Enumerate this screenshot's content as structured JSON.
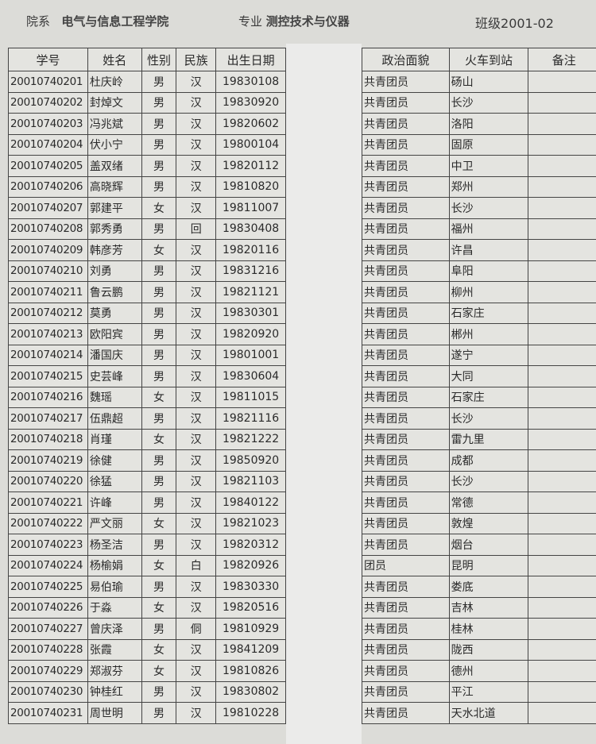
{
  "header": {
    "dept_label": "院系",
    "dept": "电气与信息工程学院",
    "major_label": "专业",
    "major": "测控技术与仪器",
    "class_label": "班级",
    "class": "2001-02"
  },
  "columns_left": [
    "学号",
    "姓名",
    "性别",
    "民族",
    "出生日期"
  ],
  "columns_right": [
    "政治面貌",
    "火车到站",
    "备注"
  ],
  "rows": [
    [
      "20010740201",
      "杜庆岭",
      "男",
      "汉",
      "19830108",
      "共青团员",
      "砀山"
    ],
    [
      "20010740202",
      "封焯文",
      "男",
      "汉",
      "19830920",
      "共青团员",
      "长沙"
    ],
    [
      "20010740203",
      "冯兆斌",
      "男",
      "汉",
      "19820602",
      "共青团员",
      "洛阳"
    ],
    [
      "20010740204",
      "伏小宁",
      "男",
      "汉",
      "19800104",
      "共青团员",
      "固原"
    ],
    [
      "20010740205",
      "盖双绪",
      "男",
      "汉",
      "19820112",
      "共青团员",
      "中卫"
    ],
    [
      "20010740206",
      "高晓辉",
      "男",
      "汉",
      "19810820",
      "共青团员",
      "郑州"
    ],
    [
      "20010740207",
      "郭建平",
      "女",
      "汉",
      "19811007",
      "共青团员",
      "长沙"
    ],
    [
      "20010740208",
      "郭秀勇",
      "男",
      "回",
      "19830408",
      "共青团员",
      "福州"
    ],
    [
      "20010740209",
      "韩彦芳",
      "女",
      "汉",
      "19820116",
      "共青团员",
      "许昌"
    ],
    [
      "20010740210",
      "刘勇",
      "男",
      "汉",
      "19831216",
      "共青团员",
      "阜阳"
    ],
    [
      "20010740211",
      "鲁云鹏",
      "男",
      "汉",
      "19821121",
      "共青团员",
      "柳州"
    ],
    [
      "20010740212",
      "莫勇",
      "男",
      "汉",
      "19830301",
      "共青团员",
      "石家庄"
    ],
    [
      "20010740213",
      "欧阳宾",
      "男",
      "汉",
      "19820920",
      "共青团员",
      "郴州"
    ],
    [
      "20010740214",
      "潘国庆",
      "男",
      "汉",
      "19801001",
      "共青团员",
      "遂宁"
    ],
    [
      "20010740215",
      "史芸峰",
      "男",
      "汉",
      "19830604",
      "共青团员",
      "大同"
    ],
    [
      "20010740216",
      "魏瑶",
      "女",
      "汉",
      "19811015",
      "共青团员",
      "石家庄"
    ],
    [
      "20010740217",
      "伍鼎超",
      "男",
      "汉",
      "19821116",
      "共青团员",
      "长沙"
    ],
    [
      "20010740218",
      "肖瑾",
      "女",
      "汉",
      "19821222",
      "共青团员",
      "雷九里"
    ],
    [
      "20010740219",
      "徐健",
      "男",
      "汉",
      "19850920",
      "共青团员",
      "成都"
    ],
    [
      "20010740220",
      "徐猛",
      "男",
      "汉",
      "19821103",
      "共青团员",
      "长沙"
    ],
    [
      "20010740221",
      "许峰",
      "男",
      "汉",
      "19840122",
      "共青团员",
      "常德"
    ],
    [
      "20010740222",
      "严文丽",
      "女",
      "汉",
      "19821023",
      "共青团员",
      "敦煌"
    ],
    [
      "20010740223",
      "杨圣洁",
      "男",
      "汉",
      "19820312",
      "共青团员",
      "烟台"
    ],
    [
      "20010740224",
      "杨榆娟",
      "女",
      "白",
      "19820926",
      "团员",
      "昆明"
    ],
    [
      "20010740225",
      "易伯瑜",
      "男",
      "汉",
      "19830330",
      "共青团员",
      "娄底"
    ],
    [
      "20010740226",
      "于淼",
      "女",
      "汉",
      "19820516",
      "共青团员",
      "吉林"
    ],
    [
      "20010740227",
      "曾庆泽",
      "男",
      "侗",
      "19810929",
      "共青团员",
      "桂林"
    ],
    [
      "20010740228",
      "张霞",
      "女",
      "汉",
      "19841209",
      "共青团员",
      "陇西"
    ],
    [
      "20010740229",
      "郑淑芬",
      "女",
      "汉",
      "19810826",
      "共青团员",
      "德州"
    ],
    [
      "20010740230",
      "钟桂红",
      "男",
      "汉",
      "19830802",
      "共青团员",
      "平江"
    ],
    [
      "20010740231",
      "周世明",
      "男",
      "汉",
      "19810228",
      "共青团员",
      "天水北道"
    ]
  ]
}
